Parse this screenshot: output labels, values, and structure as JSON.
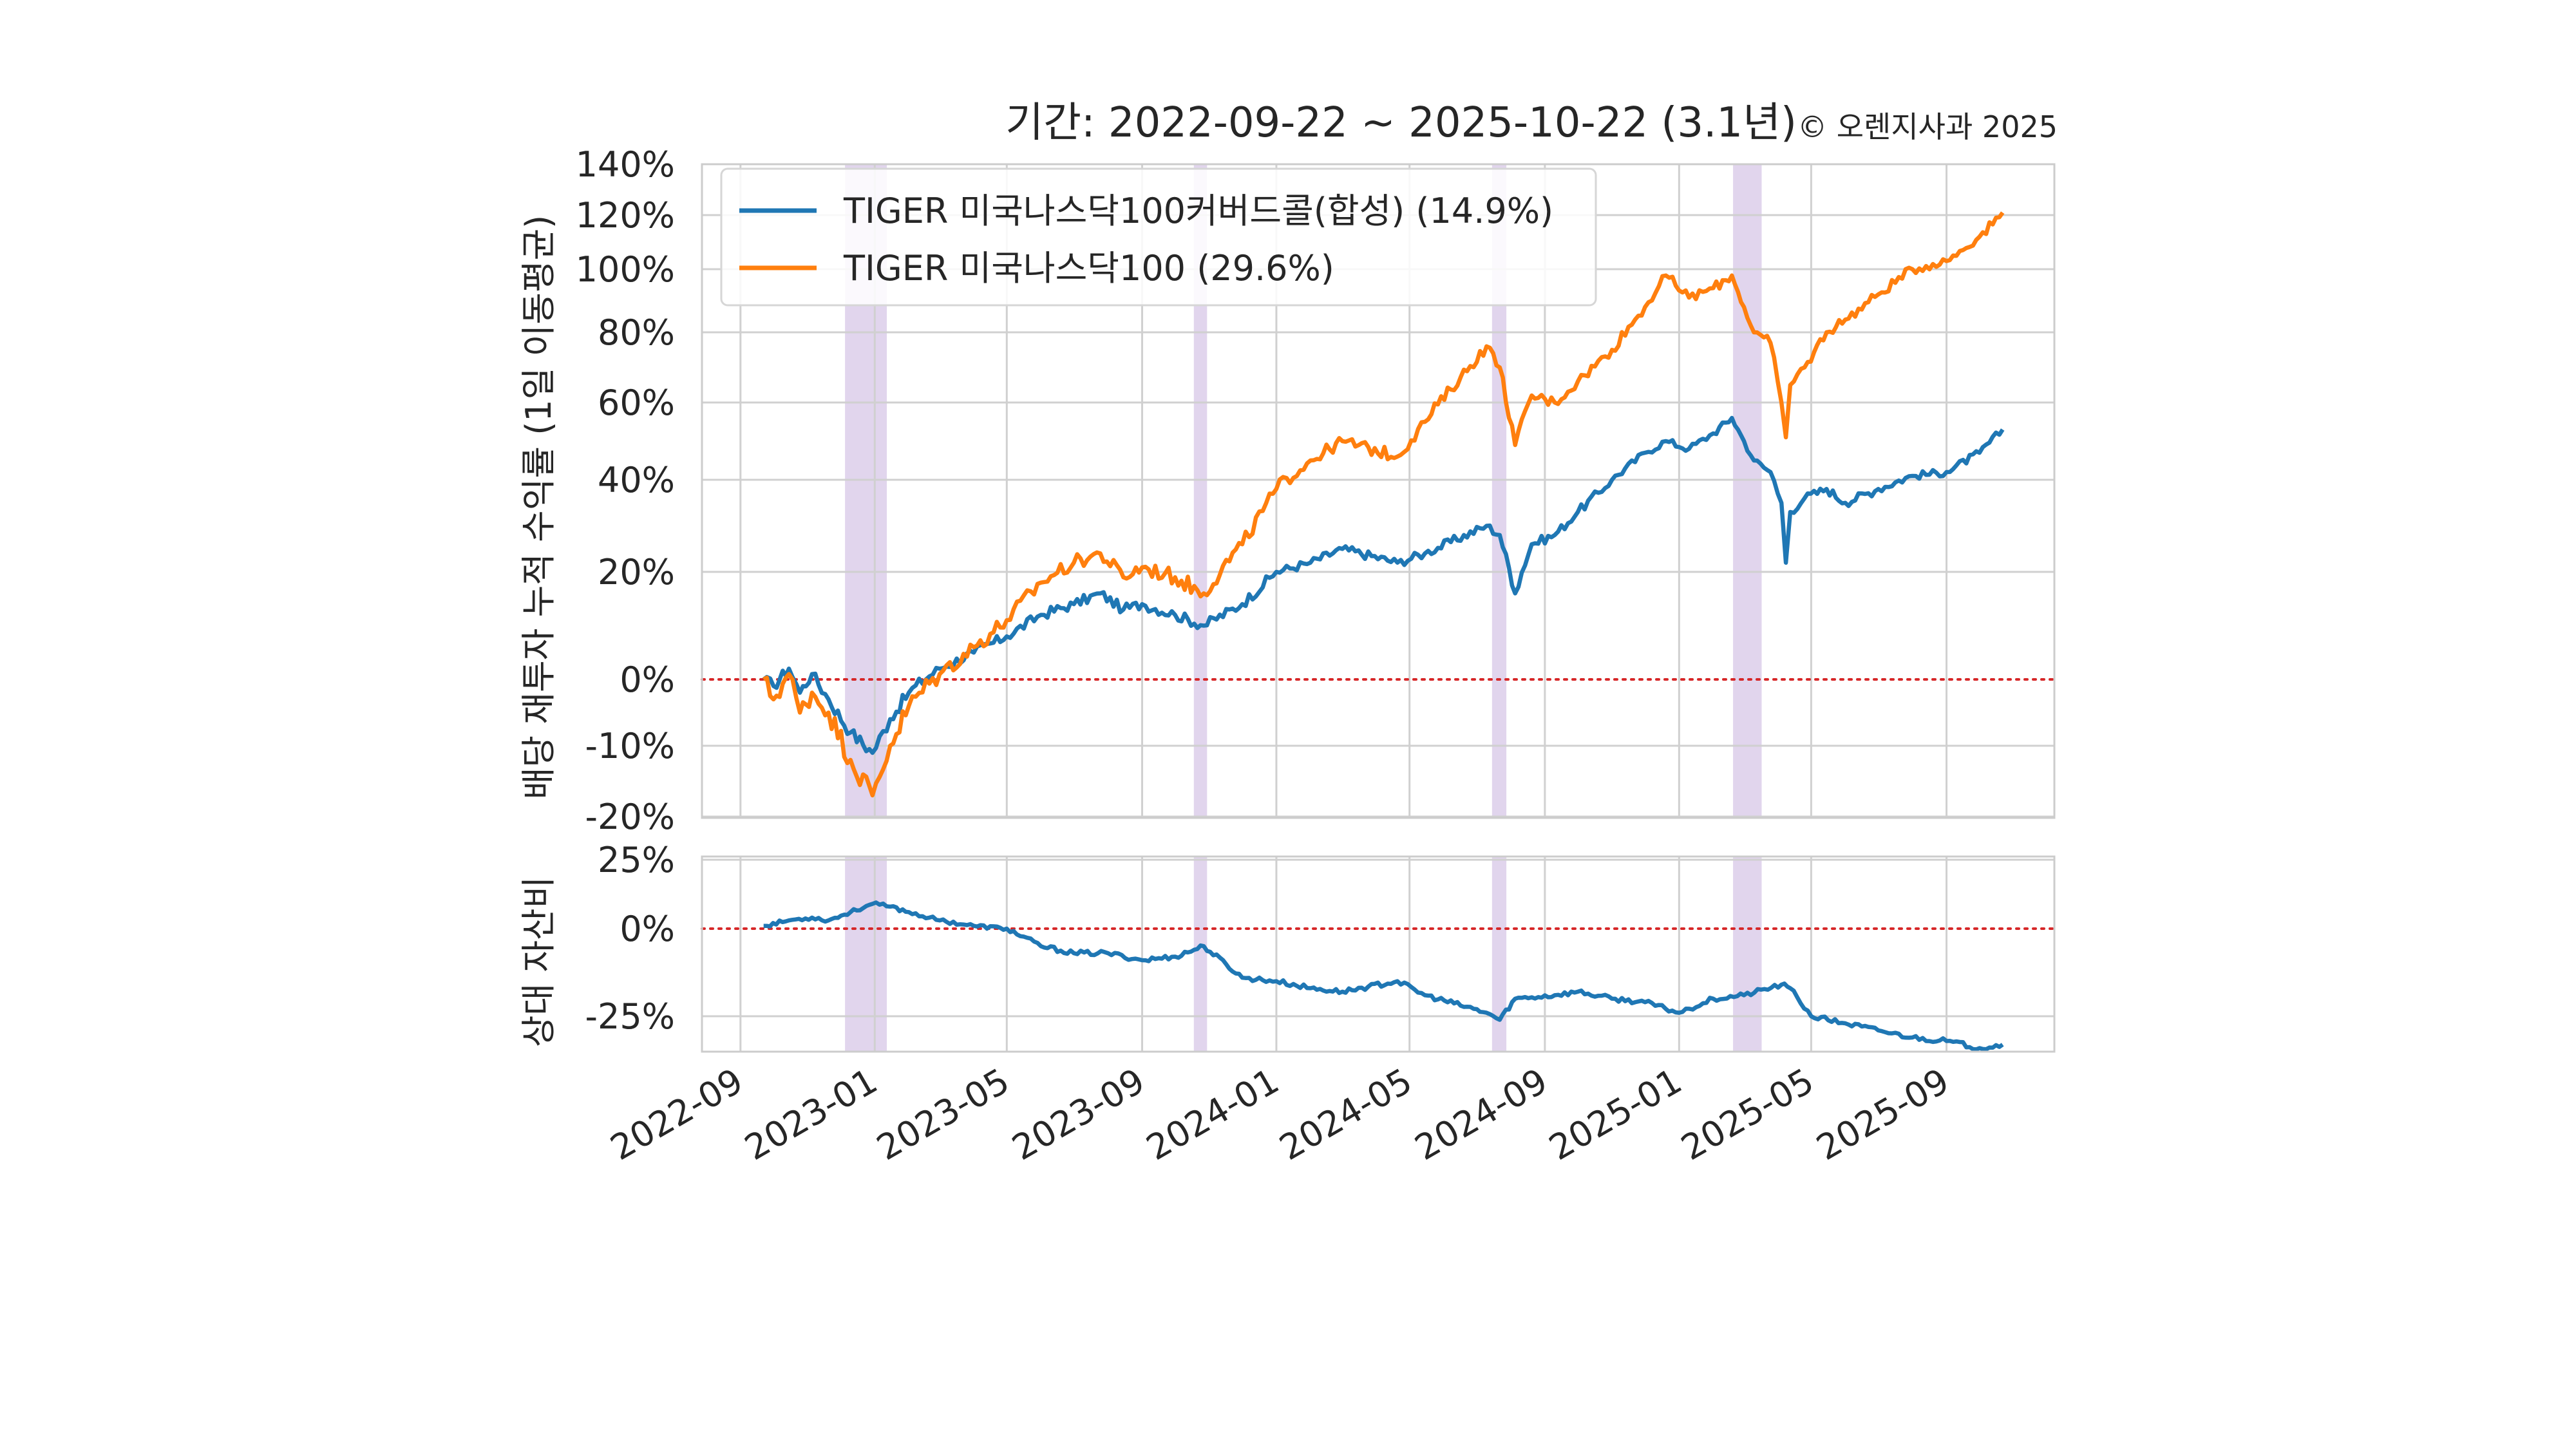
{
  "chart_data": {
    "type": "line",
    "title": "기간: 2022-09-22 ~ 2025-10-22 (3.1년)",
    "credit": "© 오렌지사과 2025",
    "x_start": "2022-09-22",
    "x_end": "2025-10-22",
    "x_ticks": [
      "2022-09",
      "2023-01",
      "2023-05",
      "2023-09",
      "2024-01",
      "2024-05",
      "2024-09",
      "2025-01",
      "2025-05",
      "2025-09"
    ],
    "shaded_periods": [
      [
        "2022-12-05",
        "2023-01-12"
      ],
      [
        "2023-10-18",
        "2023-10-30"
      ],
      [
        "2024-07-15",
        "2024-07-28"
      ],
      [
        "2025-02-19",
        "2025-03-17"
      ]
    ],
    "grid": true,
    "top_panel": {
      "ylabel": "배당 재투자 누적 수익률 (1일 이동평균)",
      "ylim": [
        -20,
        140
      ],
      "y_ticks": [
        "140%",
        "120%",
        "100%",
        "80%",
        "60%",
        "40%",
        "20%",
        "0%",
        "-10%",
        "-20%"
      ],
      "y_tick_values": [
        140,
        120,
        100,
        80,
        60,
        40,
        20,
        0,
        -10,
        -20
      ],
      "reference_line": 0,
      "legend_position": "upper-left",
      "series": [
        {
          "name": "TIGER 미국나스닥100커버드콜(합성) (14.9%)",
          "color": "#1f77b4",
          "points": [
            [
              "2022-09-22",
              0
            ],
            [
              "2022-10-01",
              -1
            ],
            [
              "2022-10-15",
              2
            ],
            [
              "2022-10-25",
              -2
            ],
            [
              "2022-11-05",
              1
            ],
            [
              "2022-11-20",
              -3
            ],
            [
              "2022-12-10",
              -8
            ],
            [
              "2022-12-30",
              -11
            ],
            [
              "2023-01-15",
              -6
            ],
            [
              "2023-02-01",
              -2
            ],
            [
              "2023-03-01",
              2
            ],
            [
              "2023-04-01",
              5
            ],
            [
              "2023-05-01",
              8
            ],
            [
              "2023-06-01",
              12
            ],
            [
              "2023-07-01",
              14
            ],
            [
              "2023-07-25",
              16
            ],
            [
              "2023-08-15",
              13
            ],
            [
              "2023-09-01",
              14
            ],
            [
              "2023-10-01",
              12
            ],
            [
              "2023-10-27",
              10
            ],
            [
              "2023-12-01",
              14
            ],
            [
              "2024-01-01",
              20
            ],
            [
              "2024-02-01",
              22
            ],
            [
              "2024-03-01",
              25
            ],
            [
              "2024-04-20",
              22
            ],
            [
              "2024-05-15",
              24
            ],
            [
              "2024-07-10",
              30
            ],
            [
              "2024-07-22",
              28
            ],
            [
              "2024-08-05",
              16
            ],
            [
              "2024-08-20",
              26
            ],
            [
              "2024-09-10",
              28
            ],
            [
              "2024-10-01",
              33
            ],
            [
              "2024-11-01",
              40
            ],
            [
              "2024-12-01",
              47
            ],
            [
              "2024-12-20",
              50
            ],
            [
              "2025-01-10",
              48
            ],
            [
              "2025-02-01",
              52
            ],
            [
              "2025-02-18",
              56
            ],
            [
              "2025-03-01",
              50
            ],
            [
              "2025-03-10",
              45
            ],
            [
              "2025-03-25",
              42
            ],
            [
              "2025-04-04",
              35
            ],
            [
              "2025-04-08",
              22
            ],
            [
              "2025-04-12",
              33
            ],
            [
              "2025-04-25",
              36
            ],
            [
              "2025-05-15",
              38
            ],
            [
              "2025-06-01",
              35
            ],
            [
              "2025-07-01",
              38
            ],
            [
              "2025-08-01",
              41
            ],
            [
              "2025-09-01",
              42
            ],
            [
              "2025-10-01",
              47
            ],
            [
              "2025-10-22",
              53
            ]
          ]
        },
        {
          "name": "TIGER 미국나스닥100 (29.6%)",
          "color": "#ff7f0e",
          "points": [
            [
              "2022-09-22",
              0
            ],
            [
              "2022-10-01",
              -3
            ],
            [
              "2022-10-15",
              1
            ],
            [
              "2022-10-25",
              -5
            ],
            [
              "2022-11-05",
              -2
            ],
            [
              "2022-11-20",
              -5
            ],
            [
              "2022-12-10",
              -12
            ],
            [
              "2022-12-30",
              -17
            ],
            [
              "2023-01-15",
              -10
            ],
            [
              "2023-02-01",
              -4
            ],
            [
              "2023-03-01",
              1
            ],
            [
              "2023-04-01",
              6
            ],
            [
              "2023-05-01",
              11
            ],
            [
              "2023-06-01",
              18
            ],
            [
              "2023-07-01",
              22
            ],
            [
              "2023-07-25",
              24
            ],
            [
              "2023-08-15",
              19
            ],
            [
              "2023-09-01",
              21
            ],
            [
              "2023-10-01",
              19
            ],
            [
              "2023-10-27",
              16
            ],
            [
              "2023-12-01",
              26
            ],
            [
              "2024-01-01",
              38
            ],
            [
              "2024-02-01",
              45
            ],
            [
              "2024-03-01",
              50
            ],
            [
              "2024-04-20",
              46
            ],
            [
              "2024-05-15",
              55
            ],
            [
              "2024-07-10",
              76
            ],
            [
              "2024-07-22",
              70
            ],
            [
              "2024-08-05",
              49
            ],
            [
              "2024-08-20",
              62
            ],
            [
              "2024-09-10",
              60
            ],
            [
              "2024-10-01",
              66
            ],
            [
              "2024-11-01",
              75
            ],
            [
              "2024-12-01",
              88
            ],
            [
              "2024-12-20",
              98
            ],
            [
              "2025-01-10",
              91
            ],
            [
              "2025-02-01",
              94
            ],
            [
              "2025-02-18",
              98
            ],
            [
              "2025-03-01",
              88
            ],
            [
              "2025-03-10",
              80
            ],
            [
              "2025-03-25",
              77
            ],
            [
              "2025-04-04",
              60
            ],
            [
              "2025-04-08",
              51
            ],
            [
              "2025-04-12",
              65
            ],
            [
              "2025-04-25",
              70
            ],
            [
              "2025-05-15",
              80
            ],
            [
              "2025-06-01",
              84
            ],
            [
              "2025-07-01",
              92
            ],
            [
              "2025-08-01",
              100
            ],
            [
              "2025-09-01",
              103
            ],
            [
              "2025-10-01",
              112
            ],
            [
              "2025-10-22",
              121
            ]
          ]
        }
      ]
    },
    "bottom_panel": {
      "ylabel": "상대 자산비",
      "ylim": [
        -35,
        25
      ],
      "y_ticks": [
        "25%",
        "0%",
        "-25%"
      ],
      "y_tick_values": [
        25,
        0,
        -25
      ],
      "reference_line": 0,
      "series": [
        {
          "color": "#1f77b4",
          "points": [
            [
              "2022-09-22",
              1
            ],
            [
              "2022-10-15",
              3
            ],
            [
              "2022-11-05",
              4
            ],
            [
              "2022-11-20",
              3
            ],
            [
              "2022-12-10",
              6
            ],
            [
              "2022-12-30",
              9
            ],
            [
              "2023-01-15",
              8
            ],
            [
              "2023-02-01",
              6
            ],
            [
              "2023-03-01",
              3
            ],
            [
              "2023-04-01",
              1
            ],
            [
              "2023-05-01",
              0
            ],
            [
              "2023-06-01",
              -5
            ],
            [
              "2023-07-01",
              -7
            ],
            [
              "2023-08-01",
              -7
            ],
            [
              "2023-09-01",
              -9
            ],
            [
              "2023-10-01",
              -8
            ],
            [
              "2023-10-27",
              -5
            ],
            [
              "2023-12-01",
              -14
            ],
            [
              "2024-01-01",
              -15
            ],
            [
              "2024-02-01",
              -17
            ],
            [
              "2024-03-01",
              -18
            ],
            [
              "2024-04-20",
              -15
            ],
            [
              "2024-05-15",
              -19
            ],
            [
              "2024-07-10",
              -24
            ],
            [
              "2024-07-22",
              -26
            ],
            [
              "2024-08-05",
              -20
            ],
            [
              "2024-09-10",
              -19
            ],
            [
              "2024-10-01",
              -18
            ],
            [
              "2024-11-01",
              -20
            ],
            [
              "2024-12-01",
              -21
            ],
            [
              "2025-01-01",
              -24
            ],
            [
              "2025-02-01",
              -20
            ],
            [
              "2025-03-01",
              -19
            ],
            [
              "2025-04-04",
              -16
            ],
            [
              "2025-04-12",
              -17
            ],
            [
              "2025-05-01",
              -25
            ],
            [
              "2025-06-01",
              -27
            ],
            [
              "2025-07-01",
              -29
            ],
            [
              "2025-08-01",
              -31
            ],
            [
              "2025-09-01",
              -32
            ],
            [
              "2025-10-01",
              -34
            ],
            [
              "2025-10-22",
              -33
            ]
          ]
        }
      ]
    }
  }
}
